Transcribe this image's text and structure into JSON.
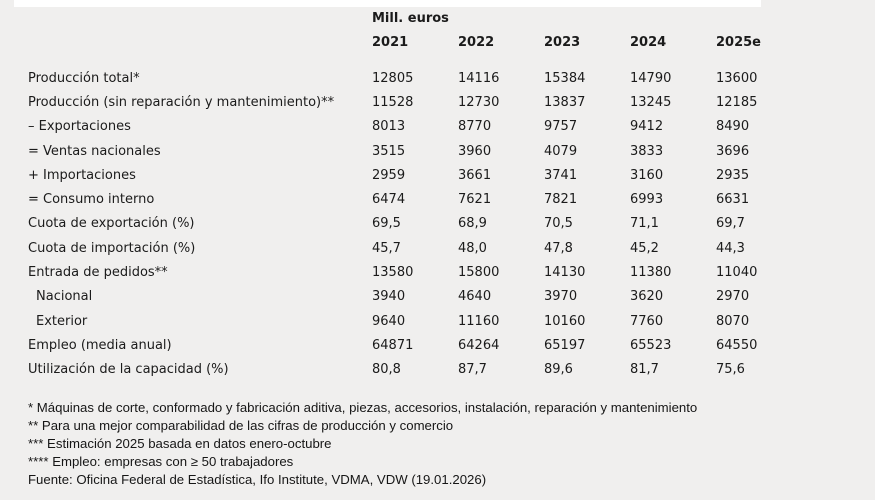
{
  "colors": {
    "background": "#f0efee",
    "text": "#1b1b1b",
    "top_strip": "#ffffff"
  },
  "chart_data": {
    "type": "table",
    "title": "Mill. euros",
    "columns": [
      "2021",
      "2022",
      "2023",
      "2024",
      "2025e"
    ],
    "rows": [
      {
        "label": "Producción total*",
        "indent": false,
        "values": [
          "12805",
          "14116",
          "15384",
          "14790",
          "13600"
        ]
      },
      {
        "label": "Producción (sin reparación y mantenimiento)**",
        "indent": false,
        "values": [
          "11528",
          "12730",
          "13837",
          "13245",
          "12185"
        ]
      },
      {
        "label": "– Exportaciones",
        "indent": false,
        "values": [
          "8013",
          "8770",
          "9757",
          "9412",
          "8490"
        ]
      },
      {
        "label": "= Ventas nacionales",
        "indent": false,
        "values": [
          "3515",
          "3960",
          "4079",
          "3833",
          "3696"
        ]
      },
      {
        "label": "+ Importaciones",
        "indent": false,
        "values": [
          "2959",
          "3661",
          "3741",
          "3160",
          "2935"
        ]
      },
      {
        "label": "= Consumo interno",
        "indent": false,
        "values": [
          "6474",
          "7621",
          "7821",
          "6993",
          "6631"
        ]
      },
      {
        "label": "Cuota de exportación (%)",
        "indent": false,
        "values": [
          "69,5",
          "68,9",
          "70,5",
          "71,1",
          "69,7"
        ]
      },
      {
        "label": "Cuota de importación (%)",
        "indent": false,
        "values": [
          "45,7",
          "48,0",
          "47,8",
          "45,2",
          "44,3"
        ]
      },
      {
        "label": "Entrada de pedidos**",
        "indent": false,
        "values": [
          "13580",
          "15800",
          "14130",
          "11380",
          "11040"
        ]
      },
      {
        "label": "Nacional",
        "indent": true,
        "values": [
          "3940",
          "4640",
          "3970",
          "3620",
          "2970"
        ]
      },
      {
        "label": "Exterior",
        "indent": true,
        "values": [
          "9640",
          "11160",
          "10160",
          "7760",
          "8070"
        ]
      },
      {
        "label": "Empleo (media anual)",
        "indent": false,
        "values": [
          "64871",
          "64264",
          "65197",
          "65523",
          "64550"
        ]
      },
      {
        "label": "Utilización de la capacidad (%)",
        "indent": false,
        "values": [
          "80,8",
          "87,7",
          "89,6",
          "81,7",
          "75,6"
        ]
      }
    ]
  },
  "footnotes": [
    "* Máquinas de corte, conformado y fabricación aditiva, piezas, accesorios, instalación, reparación y mantenimiento",
    "** Para una mejor comparabilidad de las cifras de producción y comercio",
    "*** Estimación 2025 basada en datos enero-octubre",
    "**** Empleo: empresas con ≥ 50 trabajadores",
    "Fuente: Oficina Federal de Estadística, Ifo Institute, VDMA, VDW (19.01.2026)"
  ]
}
